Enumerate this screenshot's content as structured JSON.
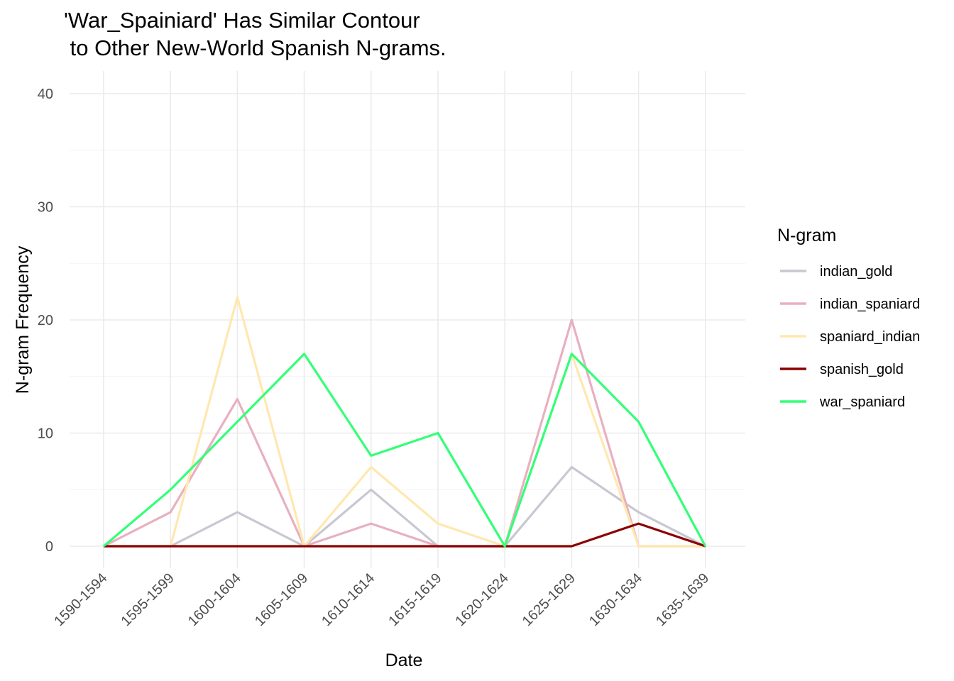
{
  "chart_data": {
    "type": "line",
    "title_lines": [
      "'War_Spainiard' Has Similar Contour",
      " to Other New-World Spanish N-grams."
    ],
    "xlabel": "Date",
    "ylabel": "N-gram Frequency",
    "categories": [
      "1590-1594",
      "1595-1599",
      "1600-1604",
      "1605-1609",
      "1610-1614",
      "1615-1619",
      "1620-1624",
      "1625-1629",
      "1630-1634",
      "1635-1639"
    ],
    "ylim": [
      0,
      40
    ],
    "yticks": [
      0,
      10,
      20,
      30,
      40
    ],
    "grid": true,
    "legend": {
      "title": "N-gram",
      "placement": "right"
    },
    "series": [
      {
        "name": "indian_gold",
        "color": "#c8c8d2",
        "values": [
          0,
          0,
          3,
          0,
          5,
          0,
          0,
          7,
          3,
          0
        ]
      },
      {
        "name": "indian_spaniard",
        "color": "#e8b0c0",
        "values": [
          0,
          3,
          13,
          0,
          2,
          0,
          0,
          20,
          0,
          0
        ]
      },
      {
        "name": "spaniard_indian",
        "color": "#ffe8b0",
        "values": [
          0,
          0,
          22,
          0,
          7,
          2,
          0,
          17,
          0,
          0
        ]
      },
      {
        "name": "spanish_gold",
        "color": "#8b0000",
        "values": [
          0,
          0,
          0,
          0,
          0,
          0,
          0,
          0,
          2,
          0
        ]
      },
      {
        "name": "war_spaniard",
        "color": "#33ff77",
        "values": [
          0,
          5,
          11,
          17,
          8,
          10,
          0,
          17,
          11,
          0
        ]
      }
    ]
  }
}
